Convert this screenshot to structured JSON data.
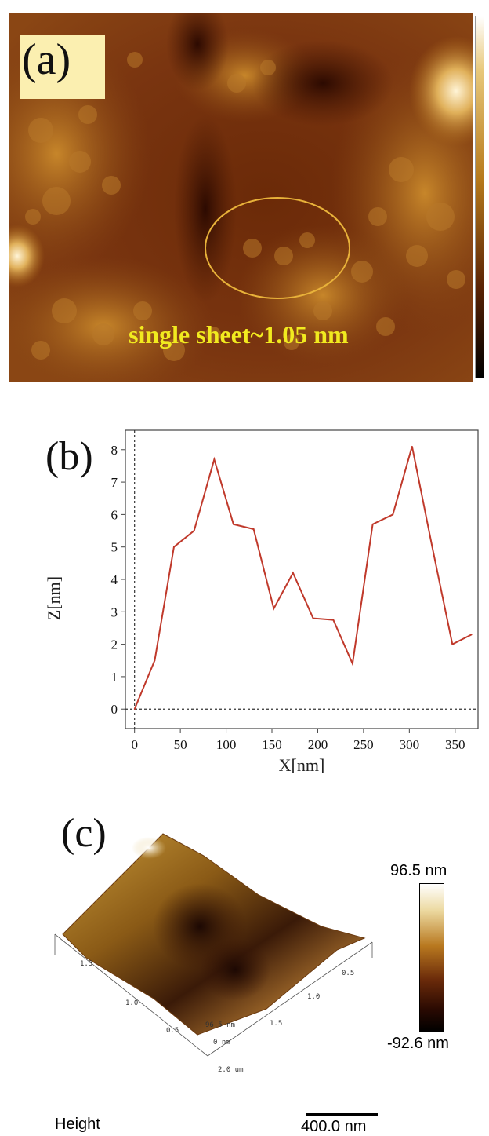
{
  "panel_a": {
    "tag": "(a)",
    "annotation": "single sheet~1.05 nm",
    "colors": {
      "label": "#f1ea1f",
      "circle": "#e8b23a",
      "tag_bg": "#fbefb0"
    }
  },
  "panel_b": {
    "tag": "(b)"
  },
  "chart_data": {
    "type": "line",
    "title": "",
    "xlabel": "X[nm]",
    "ylabel": "Z[nm]",
    "xlim": [
      -10,
      375
    ],
    "ylim": [
      -0.6,
      8.6
    ],
    "xticks": [
      0,
      50,
      100,
      150,
      200,
      250,
      300,
      350
    ],
    "yticks": [
      0,
      1,
      2,
      3,
      4,
      5,
      6,
      7,
      8
    ],
    "grid": false,
    "series": [
      {
        "color": "#c0392b",
        "x": [
          0,
          22,
          43,
          65,
          87,
          108,
          130,
          152,
          173,
          195,
          217,
          238,
          260,
          282,
          303,
          325,
          347,
          368
        ],
        "y": [
          0.0,
          1.5,
          5.0,
          5.5,
          7.7,
          5.7,
          5.55,
          3.1,
          4.2,
          2.8,
          2.75,
          1.4,
          5.7,
          6.0,
          8.1,
          5.0,
          2.0,
          2.3
        ]
      }
    ]
  },
  "panel_c": {
    "tag": "(c)",
    "scale_max": "96.5 nm",
    "scale_min": "-92.6 nm",
    "left_axis_ticks": [
      "1.5",
      "1.0",
      "0.5"
    ],
    "right_axis_ticks": [
      "0.5",
      "1.0",
      "1.5"
    ],
    "front_labels": [
      "96.5 nm",
      "0 nm",
      "2.0 um"
    ],
    "channel_label": "Height",
    "scalebar_label": "400.0 nm"
  }
}
